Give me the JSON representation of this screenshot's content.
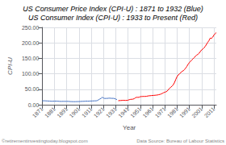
{
  "chart_data": {
    "type": "line",
    "title": "US Consumer Price Index (CPI-U) : 1871 to 1932 (Blue)",
    "subtitle": "US Consumer Index (CPI-U) : 1933 to Present (Red)",
    "xlabel": "Year",
    "ylabel": "CPI-U",
    "annotations": [
      "©retirementinvestingtoday.blogspot.com",
      "Data Source: Bureau of Labour Statistics"
    ],
    "xlim": [
      1871,
      2013
    ],
    "xticks": [
      1871,
      1881,
      1891,
      1901,
      1911,
      1921,
      1931,
      1941,
      1951,
      1961,
      1971,
      1981,
      1991,
      2001,
      2011
    ],
    "ylim": [
      0,
      250
    ],
    "yticks": [
      {
        "value": 0,
        "label": "0.00"
      },
      {
        "value": 50,
        "label": "50.00"
      },
      {
        "value": 100,
        "label": "100.00"
      },
      {
        "value": 150,
        "label": "150.00"
      },
      {
        "value": 200,
        "label": "200.00"
      },
      {
        "value": 250,
        "label": "250.00"
      }
    ],
    "grid": true,
    "series": [
      {
        "color": "#4472C4",
        "x": [
          1871,
          1872,
          1873,
          1874,
          1875,
          1876,
          1877,
          1878,
          1879,
          1880,
          1881,
          1882,
          1883,
          1884,
          1885,
          1886,
          1887,
          1888,
          1889,
          1890,
          1891,
          1892,
          1893,
          1894,
          1895,
          1896,
          1897,
          1898,
          1899,
          1900,
          1901,
          1902,
          1903,
          1904,
          1905,
          1906,
          1907,
          1908,
          1909,
          1910,
          1911,
          1912,
          1913,
          1914,
          1915,
          1916,
          1917,
          1918,
          1919,
          1920,
          1921,
          1922,
          1923,
          1924,
          1925,
          1926,
          1927,
          1928,
          1929,
          1930,
          1931,
          1932
        ],
        "values": [
          12.5,
          12.7,
          12.7,
          12.4,
          12.2,
          11.9,
          11.8,
          11.4,
          11.2,
          11.4,
          11.5,
          11.7,
          11.5,
          11.3,
          11.0,
          10.7,
          10.8,
          10.9,
          10.9,
          10.8,
          11.0,
          10.8,
          10.7,
          10.2,
          10.1,
          9.9,
          9.9,
          9.9,
          10.1,
          10.2,
          10.3,
          10.5,
          10.8,
          11.0,
          11.1,
          11.3,
          11.7,
          11.4,
          11.4,
          11.9,
          12.0,
          12.2,
          12.4,
          12.5,
          12.6,
          13.6,
          16.0,
          18.5,
          20.7,
          24.1,
          21.6,
          20.2,
          20.5,
          20.5,
          21.0,
          21.2,
          20.8,
          20.6,
          20.6,
          19.9,
          18.0,
          16.7
        ]
      },
      {
        "color": "#FF0000",
        "x": [
          1933,
          1934,
          1935,
          1936,
          1937,
          1938,
          1939,
          1940,
          1941,
          1942,
          1943,
          1944,
          1945,
          1946,
          1947,
          1948,
          1949,
          1950,
          1951,
          1952,
          1953,
          1954,
          1955,
          1956,
          1957,
          1958,
          1959,
          1960,
          1961,
          1962,
          1963,
          1964,
          1965,
          1966,
          1967,
          1968,
          1969,
          1970,
          1971,
          1972,
          1973,
          1974,
          1975,
          1976,
          1977,
          1978,
          1979,
          1980,
          1981,
          1982,
          1983,
          1984,
          1985,
          1986,
          1987,
          1988,
          1989,
          1990,
          1991,
          1992,
          1993,
          1994,
          1995,
          1996,
          1997,
          1998,
          1999,
          2000,
          2001,
          2002,
          2003,
          2004,
          2005,
          2006,
          2007,
          2008,
          2009,
          2010,
          2011,
          2012,
          2013
        ],
        "values": [
          13.0,
          13.4,
          13.7,
          13.9,
          14.4,
          14.1,
          13.9,
          14.0,
          14.7,
          16.3,
          17.3,
          17.6,
          18.0,
          19.5,
          22.3,
          24.1,
          23.8,
          24.1,
          26.0,
          26.5,
          26.7,
          26.9,
          26.8,
          27.2,
          28.1,
          28.9,
          29.1,
          29.6,
          29.9,
          30.2,
          30.6,
          31.0,
          31.5,
          32.4,
          33.4,
          34.8,
          36.7,
          38.8,
          40.5,
          41.8,
          44.4,
          49.3,
          53.8,
          56.9,
          60.6,
          65.2,
          72.6,
          82.4,
          90.9,
          96.5,
          99.6,
          103.9,
          107.6,
          109.6,
          113.6,
          118.3,
          124.0,
          130.7,
          136.2,
          140.3,
          144.5,
          148.2,
          152.4,
          156.9,
          160.5,
          163.0,
          166.6,
          172.2,
          177.1,
          179.9,
          184.0,
          188.9,
          195.3,
          201.6,
          207.3,
          215.3,
          214.5,
          218.1,
          224.9,
          229.6,
          233.0
        ]
      }
    ]
  }
}
